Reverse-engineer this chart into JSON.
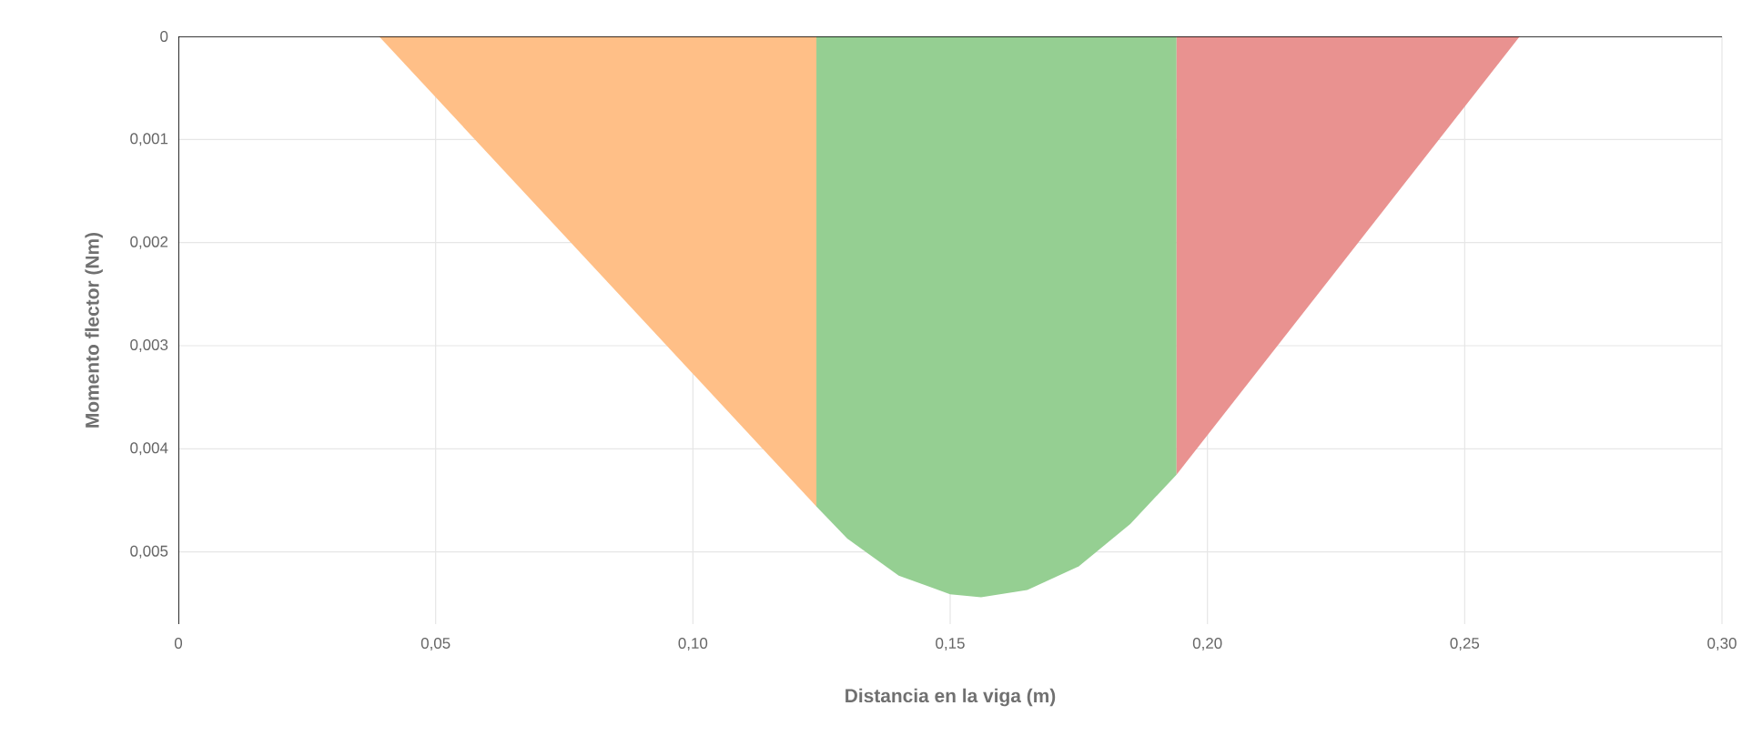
{
  "chart_data": {
    "type": "area",
    "xlabel": "Distancia en la viga (m)",
    "ylabel": "Momento flector (Nm)",
    "xlim": [
      0,
      0.3
    ],
    "ylim": [
      0.0057,
      0
    ],
    "xticks": [
      0,
      {
        "value": 0.05,
        "label": "0,05"
      },
      {
        "value": 0.1,
        "label": "0,10"
      },
      {
        "value": 0.15,
        "label": "0,15"
      },
      {
        "value": 0.2,
        "label": "0,20"
      },
      {
        "value": 0.25,
        "label": "0,25"
      },
      {
        "value": 0.3,
        "label": "0,30"
      }
    ],
    "yticks": [
      0,
      {
        "value": 0.001,
        "label": "0,001"
      },
      {
        "value": 0.002,
        "label": "0,002"
      },
      {
        "value": 0.003,
        "label": "0,003"
      },
      {
        "value": 0.004,
        "label": "0,004"
      },
      {
        "value": 0.005,
        "label": "0,005"
      }
    ],
    "grid": true,
    "series": [
      {
        "color": "#ffbf87",
        "x": [
          0.039,
          0.124
        ],
        "values": [
          0,
          0.00456
        ]
      },
      {
        "color": "#95cf92",
        "x": [
          0.124,
          0.13,
          0.14,
          0.15,
          0.156,
          0.165,
          0.175,
          0.185,
          0.194
        ],
        "values": [
          0.00456,
          0.00487,
          0.00523,
          0.00541,
          0.00544,
          0.00537,
          0.00514,
          0.00473,
          0.00425
        ]
      },
      {
        "color": "#e99290",
        "x": [
          0.194,
          0.2607
        ],
        "values": [
          0.00425,
          0
        ]
      }
    ]
  }
}
